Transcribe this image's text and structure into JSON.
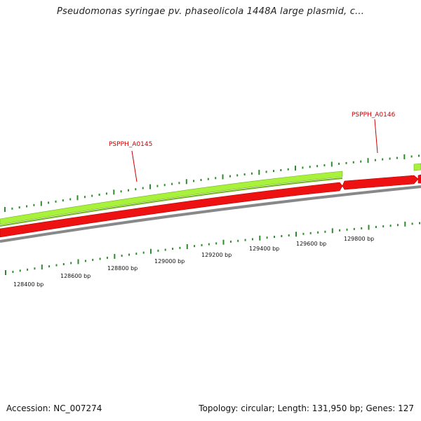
{
  "title": "Pseudomonas syringae pv. phaseolicola 1448A large plasmid, c...",
  "footer": {
    "accession": "Accession: NC_007274",
    "summary": "Topology: circular; Length: 131,950 bp; Genes: 127"
  },
  "colors": {
    "forward_gene": "#a8f23c",
    "forward_gene_edge": "#6fb21a",
    "reverse_gene": "#ee1111",
    "reverse_gene_edge": "#b00000",
    "backbone": "#888888",
    "tick": "#2e8b2e",
    "label": "#cc0000"
  },
  "ruler": {
    "labels": [
      "128400 bp",
      "128600 bp",
      "128800 bp",
      "129000 bp",
      "129200 bp",
      "129400 bp",
      "129600 bp",
      "129800 bp"
    ]
  },
  "genes": [
    {
      "name": "PSPPH_A0145"
    },
    {
      "name": "PSPPH_A0146"
    }
  ]
}
